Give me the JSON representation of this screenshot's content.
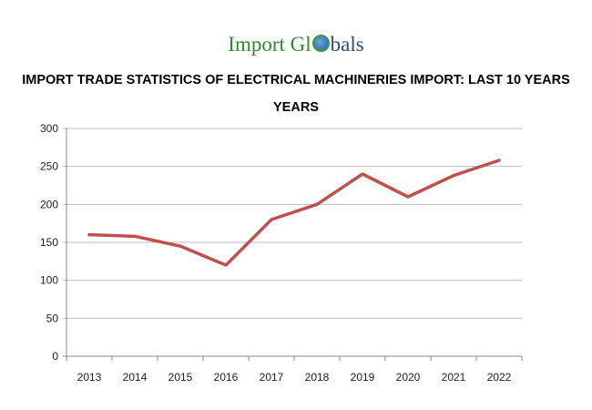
{
  "logo": {
    "text_green": "Import Gl",
    "text_blue": "bals",
    "full": "Import Globals"
  },
  "chart_data": {
    "type": "line",
    "title": "IMPORT TRADE STATISTICS OF ELECTRICAL MACHINERIES IMPORT: LAST 10 YEARS",
    "subtitle": "YEARS",
    "categories": [
      "2013",
      "2014",
      "2015",
      "2016",
      "2017",
      "2018",
      "2019",
      "2020",
      "2021",
      "2022"
    ],
    "series": [
      {
        "values": [
          160,
          158,
          145,
          120,
          180,
          200,
          240,
          210,
          238,
          258
        ],
        "color": "#c0504d"
      }
    ],
    "ylim": [
      0,
      300
    ],
    "yticks": [
      0,
      50,
      100,
      150,
      200,
      250,
      300
    ],
    "grid": true,
    "legend": "none"
  }
}
